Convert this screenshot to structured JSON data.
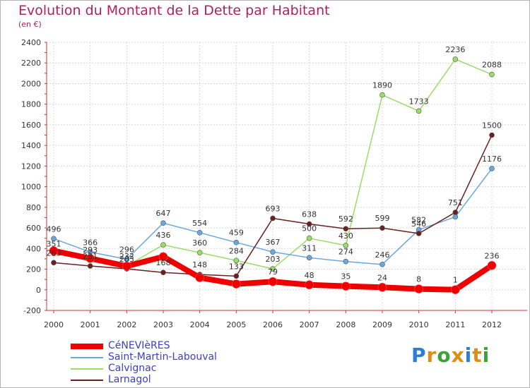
{
  "chart_data": {
    "type": "line",
    "title": "Evolution du Montant de la Dette par Habitant",
    "subtitle": "(en €)",
    "x": [
      "2000",
      "2001",
      "2002",
      "2003",
      "2004",
      "2005",
      "2006",
      "2007",
      "2008",
      "2009",
      "2010",
      "2011",
      "2012"
    ],
    "ylim": [
      -200,
      2400
    ],
    "yticks": [
      -200,
      0,
      200,
      400,
      600,
      800,
      1000,
      1200,
      1400,
      1600,
      1800,
      2000,
      2200,
      2400
    ],
    "grid": true,
    "legend_position": "bottom-left",
    "series": [
      {
        "name": "CéNEVIèRES",
        "color": "#ee0000",
        "values": [
          378,
          304,
          229,
          321,
          118,
          56,
          79,
          48,
          35,
          24,
          8,
          1,
          236
        ]
      },
      {
        "name": "Saint-Martin-Labouval",
        "color": "#6aa7dc",
        "values": [
          496,
          366,
          296,
          647,
          554,
          459,
          367,
          311,
          274,
          246,
          582,
          707,
          1176
        ]
      },
      {
        "name": "Calvignac",
        "color": "#99dd66",
        "values": [
          351,
          293,
          232,
          436,
          360,
          284,
          203,
          500,
          430,
          1890,
          1733,
          2236,
          2088
        ]
      },
      {
        "name": "Larnagol",
        "color": "#6b1f1f",
        "values": [
          263,
          231,
          203,
          168,
          148,
          133,
          693,
          638,
          592,
          599,
          546,
          751,
          1500
        ]
      }
    ],
    "labels": {
      "CéNEVIèRES": [
        "",
        "",
        "",
        "",
        "",
        "",
        "79",
        "48",
        "35",
        "24",
        "8",
        "1",
        "236"
      ],
      "Saint-Martin-Labouval": [
        "496",
        "366",
        "296",
        "647",
        "554",
        "459",
        "367",
        "311",
        "274",
        "246",
        "582",
        "",
        "1176"
      ],
      "Calvignac": [
        "351",
        "293",
        "232",
        "436",
        "360",
        "284",
        "203",
        "500",
        "430",
        "1890",
        "1733",
        "2236",
        "2088"
      ],
      "Larnagol": [
        "263",
        "231",
        "203",
        "168",
        "148",
        "133",
        "693",
        "638",
        "592",
        "599",
        "546",
        "751",
        "1500"
      ]
    }
  },
  "logo": {
    "text": "Proxiti"
  }
}
